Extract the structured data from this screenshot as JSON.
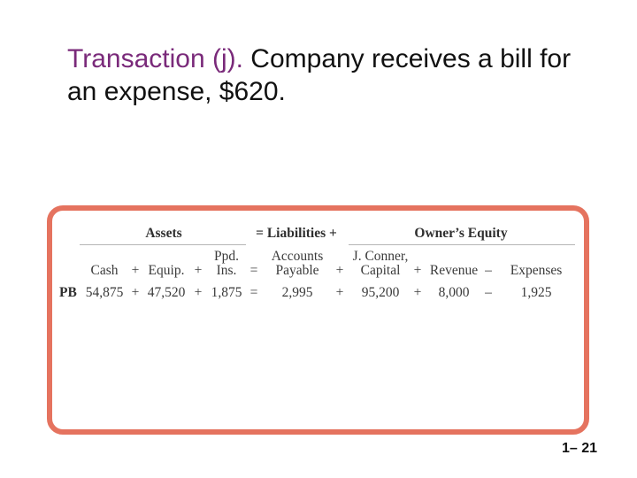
{
  "title": {
    "accent": "Transaction (j).",
    "rest": " Company receives a bill for an expense, $620."
  },
  "equation": {
    "headers": {
      "assets": "Assets",
      "eq_liabilities": "= Liabilities +",
      "owners_equity": "Owner’s Equity"
    },
    "columns": {
      "cash": "Cash",
      "plus1": "+",
      "equip": "Equip.",
      "plus2": "+",
      "ppd_top": "Ppd.",
      "ppd_bottom": "Ins.",
      "equals": "=",
      "accounts_top": "Accounts",
      "accounts_bottom": "Payable",
      "plus3": "+",
      "capital_top": "J. Conner,",
      "capital_bottom": "Capital",
      "plus4": "+",
      "revenue": "Revenue",
      "minus": "–",
      "expenses": "Expenses"
    },
    "row": {
      "label": "PB",
      "cash": "54,875",
      "plus1": "+",
      "equip": "47,520",
      "plus2": "+",
      "ppd_ins": "1,875",
      "equals": "=",
      "accounts_payable": "2,995",
      "plus3": "+",
      "capital": "95,200",
      "plus4": "+",
      "revenue": "8,000",
      "minus": "–",
      "expenses": "1,925"
    }
  },
  "slide_number": "1– 21",
  "colors": {
    "frame": "#e5735f",
    "accent": "#7a2a7a"
  }
}
